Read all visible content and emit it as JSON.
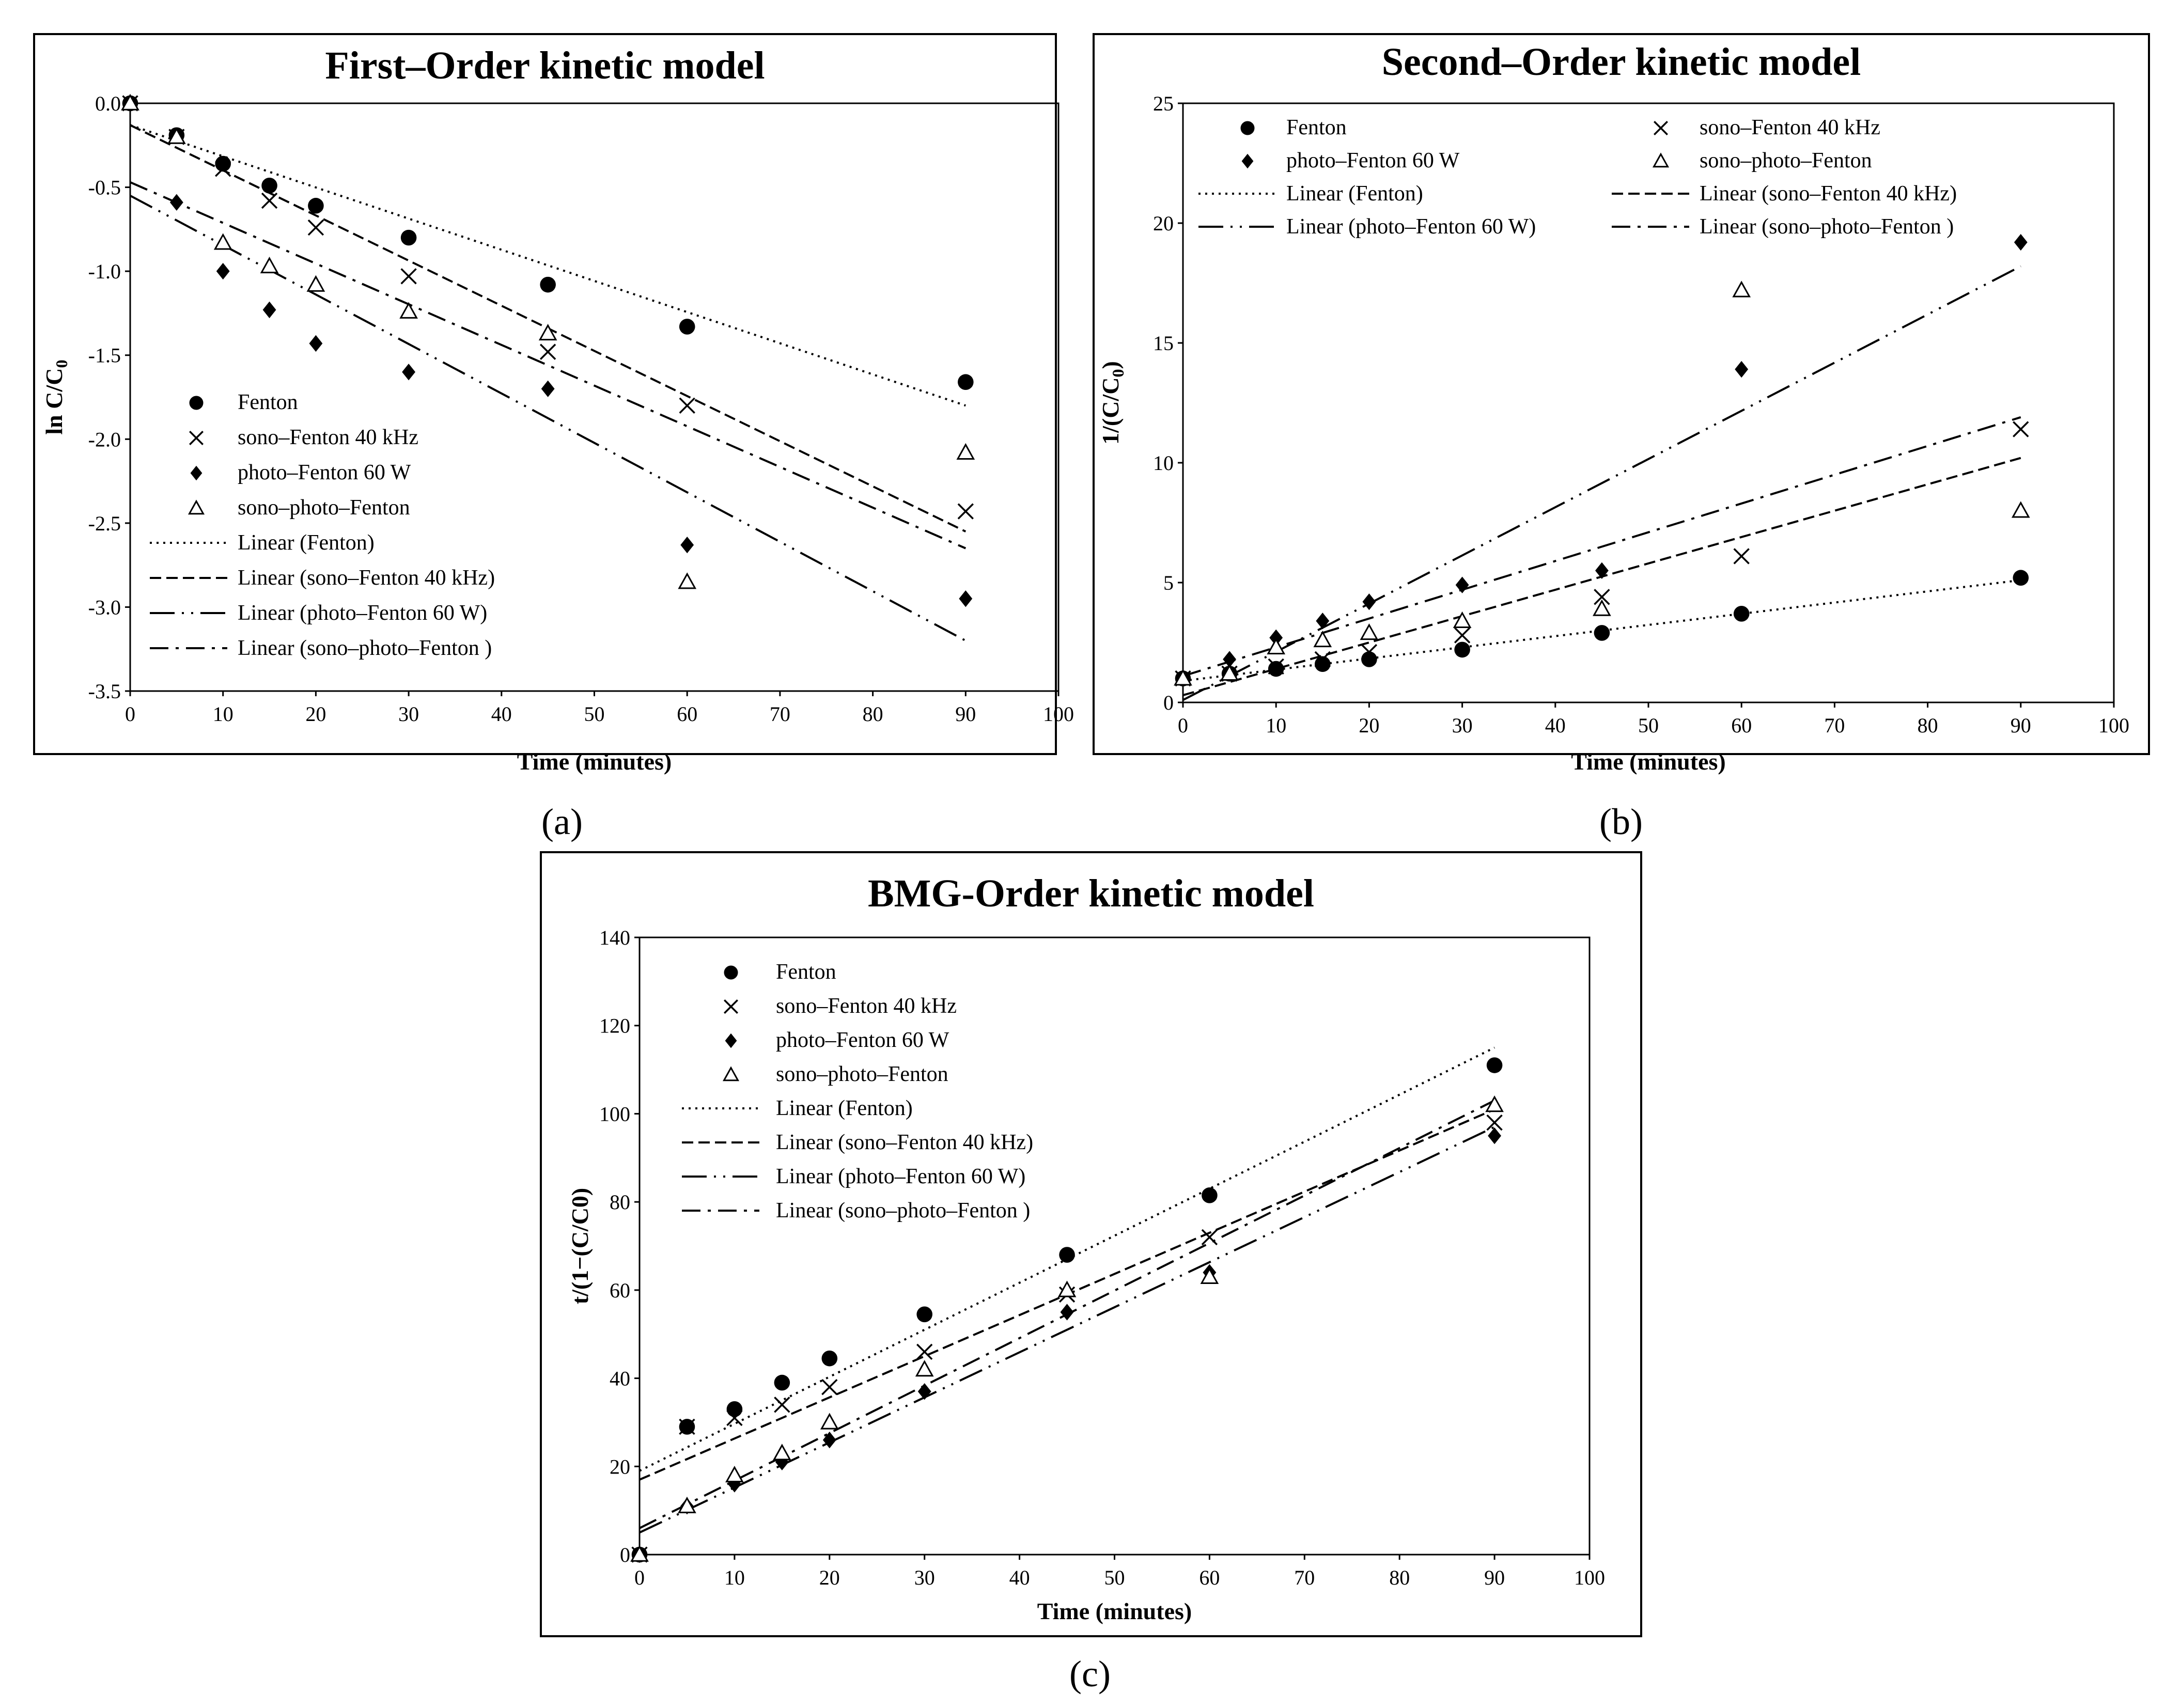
{
  "chart_data": [
    {
      "panel_label": "(a)",
      "type": "scatter",
      "title": "First–Order kinetic model",
      "xlabel": "Time (minutes)",
      "ylabel_main": "ln C/C",
      "ylabel_sub": "0",
      "xlim": [
        0,
        100
      ],
      "ylim": [
        -3.5,
        0
      ],
      "xticks": [
        "0",
        "10",
        "20",
        "30",
        "40",
        "50",
        "60",
        "70",
        "80",
        "90",
        "100"
      ],
      "yticks": [
        "0.0",
        "-0.5",
        "-1.0",
        "-1.5",
        "-2.0",
        "-2.5",
        "-3.0",
        "-3.5"
      ],
      "legend_position": "lower-left",
      "series": [
        {
          "name": "Fenton",
          "marker": "circle",
          "x": [
            0,
            5,
            10,
            15,
            20,
            30,
            45,
            60,
            90
          ],
          "y": [
            0,
            -0.19,
            -0.36,
            -0.49,
            -0.61,
            -0.8,
            -1.08,
            -1.33,
            -1.66
          ]
        },
        {
          "name": "sono–Fenton 40 kHz",
          "marker": "x",
          "x": [
            0,
            5,
            10,
            15,
            20,
            30,
            45,
            60,
            90
          ],
          "y": [
            0,
            -0.2,
            -0.39,
            -0.58,
            -0.74,
            -1.03,
            -1.48,
            -1.8,
            -2.43
          ]
        },
        {
          "name": "photo–Fenton 60 W",
          "marker": "diamond",
          "x": [
            0,
            5,
            10,
            15,
            20,
            30,
            45,
            60,
            90
          ],
          "y": [
            0,
            -0.59,
            -1.0,
            -1.23,
            -1.43,
            -1.6,
            -1.7,
            -2.63,
            -2.95
          ]
        },
        {
          "name": "sono–photo–Fenton",
          "marker": "triangle",
          "x": [
            0,
            5,
            10,
            15,
            20,
            30,
            45,
            60,
            90
          ],
          "y": [
            0,
            -0.2,
            -0.83,
            -0.97,
            -1.08,
            -1.24,
            -1.37,
            -2.85,
            -2.08
          ]
        }
      ],
      "fits": [
        {
          "name": "Linear (Fenton)",
          "dash": "dot",
          "x": [
            0,
            90
          ],
          "y": [
            -0.13,
            -1.8
          ]
        },
        {
          "name": "Linear (sono–Fenton 40 kHz)",
          "dash": "dash",
          "x": [
            0,
            90
          ],
          "y": [
            -0.13,
            -2.55
          ]
        },
        {
          "name": "Linear (photo–Fenton 60 W)",
          "dash": "longdashdotdot",
          "x": [
            0,
            90
          ],
          "y": [
            -0.55,
            -3.2
          ]
        },
        {
          "name": "Linear (sono–photo–Fenton )",
          "dash": "dashdot",
          "x": [
            0,
            90
          ],
          "y": [
            -0.47,
            -2.65
          ]
        }
      ]
    },
    {
      "panel_label": "(b)",
      "type": "scatter",
      "title": "Second–Order kinetic model",
      "xlabel": "Time (minutes)",
      "ylabel_main": "1/(C/C",
      "ylabel_sub": "0",
      "ylabel_end": ")",
      "xlim": [
        0,
        100
      ],
      "ylim": [
        0,
        25
      ],
      "xticks": [
        "0",
        "10",
        "20",
        "30",
        "40",
        "50",
        "60",
        "70",
        "80",
        "90",
        "100"
      ],
      "yticks": [
        "0",
        "5",
        "10",
        "15",
        "20",
        "25"
      ],
      "legend_position": "top",
      "series": [
        {
          "name": "Fenton",
          "marker": "circle",
          "x": [
            0,
            5,
            10,
            15,
            20,
            30,
            45,
            60,
            90
          ],
          "y": [
            1.0,
            1.2,
            1.4,
            1.6,
            1.8,
            2.2,
            2.9,
            3.7,
            5.2
          ]
        },
        {
          "name": "sono–Fenton 40 kHz",
          "marker": "x",
          "x": [
            0,
            5,
            10,
            15,
            20,
            30,
            45,
            60,
            90
          ],
          "y": [
            1.0,
            1.2,
            1.5,
            1.8,
            2.1,
            2.8,
            4.4,
            6.1,
            11.4
          ]
        },
        {
          "name": "photo–Fenton 60 W",
          "marker": "diamond",
          "x": [
            0,
            5,
            10,
            15,
            20,
            30,
            45,
            60,
            90
          ],
          "y": [
            1.0,
            1.8,
            2.7,
            3.4,
            4.2,
            4.9,
            5.5,
            13.9,
            19.2
          ]
        },
        {
          "name": "sono–photo–Fenton",
          "marker": "triangle",
          "x": [
            0,
            5,
            10,
            15,
            20,
            30,
            45,
            60,
            90
          ],
          "y": [
            1.0,
            1.2,
            2.3,
            2.6,
            2.9,
            3.4,
            3.9,
            17.2,
            8.0
          ]
        }
      ],
      "fits": [
        {
          "name": "Linear (Fenton)",
          "dash": "dot",
          "x": [
            0,
            90
          ],
          "y": [
            0.9,
            5.1
          ]
        },
        {
          "name": "Linear (sono–Fenton 40 kHz)",
          "dash": "dash",
          "x": [
            0,
            90
          ],
          "y": [
            0.3,
            10.2
          ]
        },
        {
          "name": "Linear (photo–Fenton 60 W)",
          "dash": "longdashdotdot",
          "x": [
            0,
            90
          ],
          "y": [
            0.1,
            18.2
          ]
        },
        {
          "name": "Linear (sono–photo–Fenton )",
          "dash": "dashdot",
          "x": [
            0,
            90
          ],
          "y": [
            1.1,
            11.9
          ]
        }
      ]
    },
    {
      "panel_label": "(c)",
      "type": "scatter",
      "title": "BMG-Order kinetic model",
      "xlabel": "Time (minutes)",
      "ylabel_main": "t/(1−(C/C0)",
      "ylabel_sub": "",
      "xlim": [
        0,
        100
      ],
      "ylim": [
        0,
        140
      ],
      "xticks": [
        "0",
        "10",
        "20",
        "30",
        "40",
        "50",
        "60",
        "70",
        "80",
        "90",
        "100"
      ],
      "yticks": [
        "0",
        "20",
        "40",
        "60",
        "80",
        "100",
        "120",
        "140"
      ],
      "legend_position": "top-left",
      "series": [
        {
          "name": "Fenton",
          "marker": "circle",
          "x": [
            0,
            5,
            10,
            15,
            20,
            30,
            45,
            60,
            90
          ],
          "y": [
            0,
            29,
            33,
            39,
            44.5,
            54.5,
            68,
            81.5,
            111
          ]
        },
        {
          "name": "sono–Fenton 40 kHz",
          "marker": "x",
          "x": [
            0,
            5,
            10,
            15,
            20,
            30,
            45,
            60,
            90
          ],
          "y": [
            0,
            29,
            31,
            34,
            38,
            46,
            59,
            72,
            98
          ]
        },
        {
          "name": "photo–Fenton 60 W",
          "marker": "diamond",
          "x": [
            0,
            5,
            10,
            15,
            20,
            30,
            45,
            60,
            90
          ],
          "y": [
            0,
            11,
            16,
            21,
            26,
            37,
            55,
            64,
            95
          ]
        },
        {
          "name": "sono–photo–Fenton",
          "marker": "triangle",
          "x": [
            0,
            5,
            10,
            15,
            20,
            30,
            45,
            60,
            90
          ],
          "y": [
            0,
            11,
            18,
            23,
            30,
            42,
            60,
            63,
            102
          ]
        }
      ],
      "fits": [
        {
          "name": "Linear (Fenton)",
          "dash": "dot",
          "x": [
            0,
            90
          ],
          "y": [
            19,
            115
          ]
        },
        {
          "name": "Linear (sono–Fenton 40 kHz)",
          "dash": "dash",
          "x": [
            0,
            90
          ],
          "y": [
            17,
            101
          ]
        },
        {
          "name": "Linear (photo–Fenton 60 W)",
          "dash": "longdashdotdot",
          "x": [
            0,
            90
          ],
          "y": [
            5,
            97
          ]
        },
        {
          "name": "Linear (sono–photo–Fenton )",
          "dash": "dashdot",
          "x": [
            0,
            90
          ],
          "y": [
            6,
            103
          ]
        }
      ]
    }
  ]
}
